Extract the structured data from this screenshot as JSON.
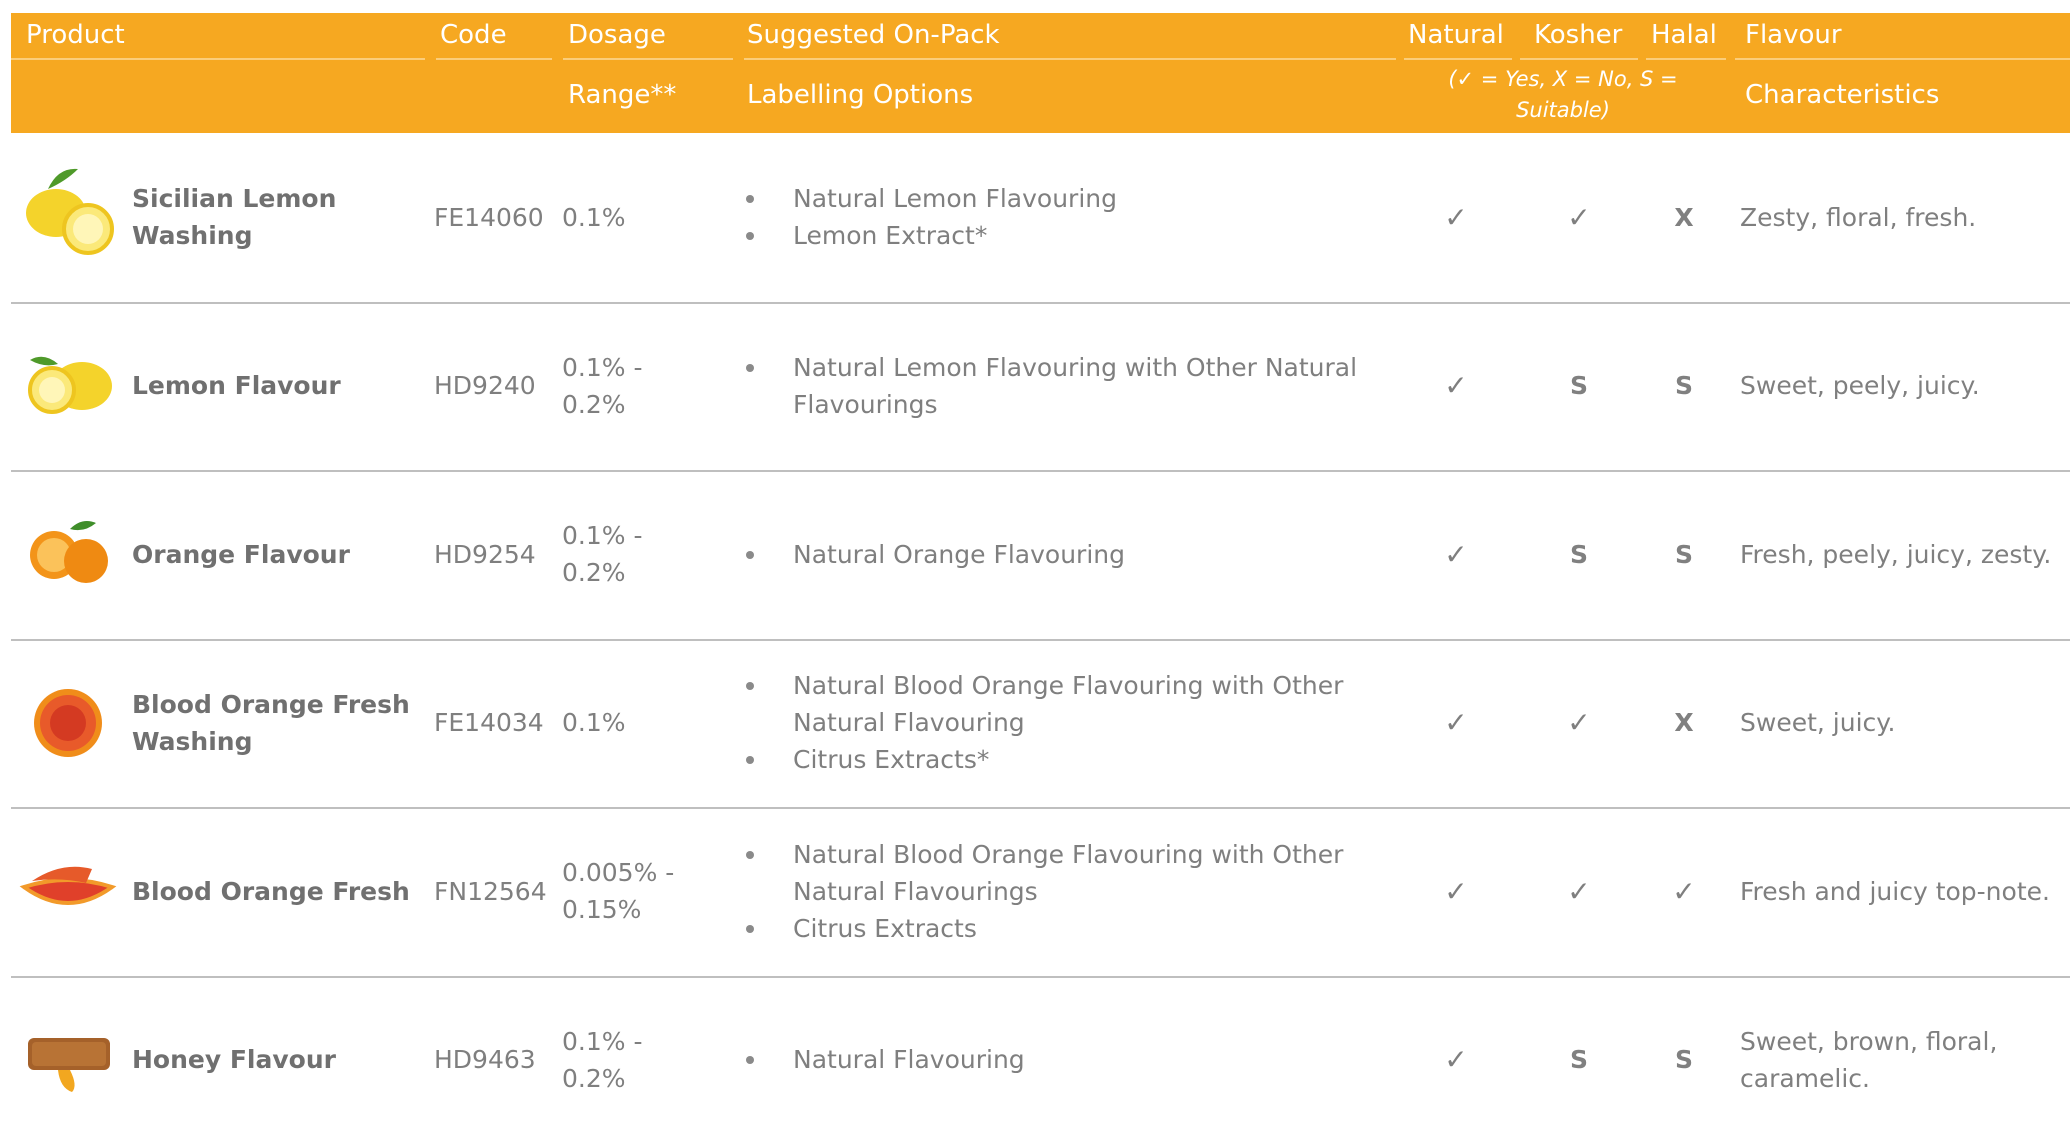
{
  "header": {
    "top": [
      "Product",
      "Code",
      "Dosage",
      "Suggested On-Pack",
      "Natural",
      "Kosher",
      "Halal",
      "Flavour"
    ],
    "bottom": {
      "dosage": "Range**",
      "labelling": "Labelling Options",
      "note": "(✓ = Yes, X = No, S = Suitable)",
      "flavour": "Characteristics"
    }
  },
  "table": {
    "rows": [
      {
        "product": "Sicilian Lemon Washing",
        "code": "FE14060",
        "dosage": "0.1%",
        "labelling": [
          "Natural Lemon Flavouring",
          "Lemon Extract*"
        ],
        "natural": "✓",
        "kosher": "✓",
        "halal": "X",
        "flavour": "Zesty, floral, fresh."
      },
      {
        "product": "Lemon Flavour",
        "code": "HD9240",
        "dosage": "0.1% - 0.2%",
        "labelling": [
          "Natural Lemon Flavouring with Other Natural Flavourings"
        ],
        "natural": "✓",
        "kosher": "S",
        "halal": "S",
        "flavour": "Sweet, peely, juicy."
      },
      {
        "product": "Orange Flavour",
        "code": "HD9254",
        "dosage": "0.1% - 0.2%",
        "labelling": [
          "Natural Orange Flavouring"
        ],
        "natural": "✓",
        "kosher": "S",
        "halal": "S",
        "flavour": "Fresh, peely, juicy, zesty."
      },
      {
        "product": "Blood Orange Fresh Washing",
        "code": "FE14034",
        "dosage": "0.1%",
        "labelling": [
          "Natural Blood Orange Flavouring with Other Natural Flavouring",
          "Citrus Extracts*"
        ],
        "natural": "✓",
        "kosher": "✓",
        "halal": "X",
        "flavour": "Sweet, juicy."
      },
      {
        "product": "Blood Orange Fresh",
        "code": "FN12564",
        "dosage": "0.005% - 0.15%",
        "labelling": [
          "Natural Blood Orange Flavouring with Other Natural Flavourings",
          "Citrus Extracts"
        ],
        "natural": "✓",
        "kosher": "✓",
        "halal": "✓",
        "flavour": "Fresh and juicy top-note."
      },
      {
        "product": "Honey Flavour",
        "code": "HD9463",
        "dosage": "0.1% - 0.2%",
        "labelling": [
          "Natural Flavouring"
        ],
        "natural": "✓",
        "kosher": "S",
        "halal": "S",
        "flavour": "Sweet, brown, floral, caramelic."
      }
    ]
  }
}
